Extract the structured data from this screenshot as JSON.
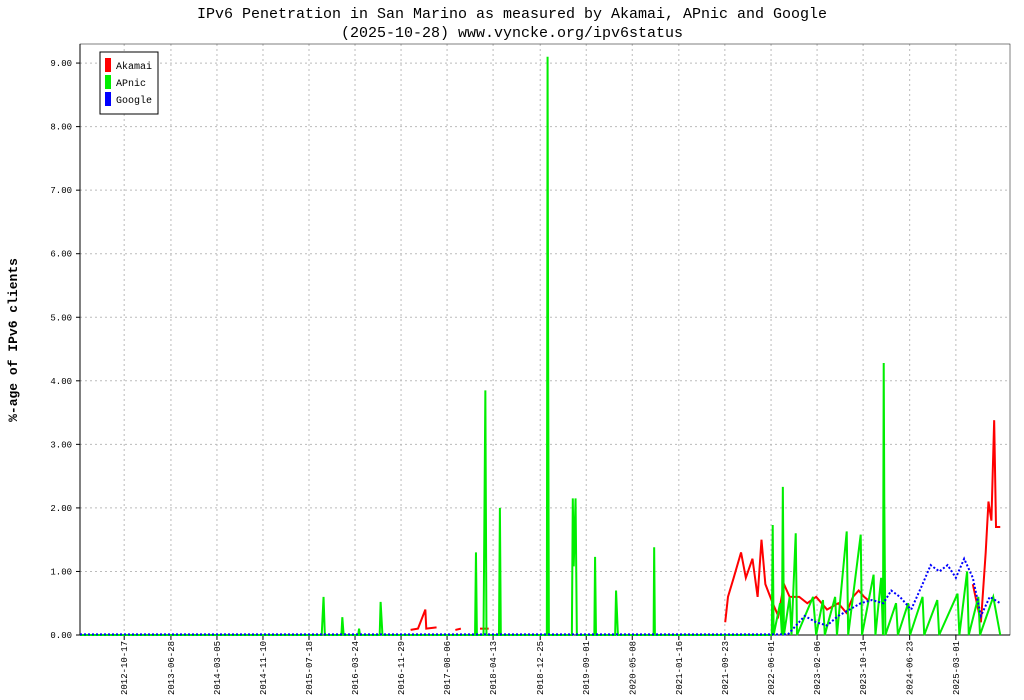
{
  "chart_data": {
    "type": "line",
    "title": "IPv6 Penetration in San Marino as measured by Akamai, APnic and Google",
    "subtitle": "(2025-10-28) www.vyncke.org/ipv6status",
    "y_label": "%-age of IPv6 clients",
    "xlim": [
      "2012-02-20",
      "2025-12-20"
    ],
    "xticks": [
      "2012-10-17",
      "2013-06-28",
      "2014-03-05",
      "2014-11-10",
      "2015-07-18",
      "2016-03-24",
      "2016-11-29",
      "2017-08-06",
      "2018-04-13",
      "2018-12-25",
      "2019-09-01",
      "2020-05-08",
      "2021-01-16",
      "2021-09-23",
      "2022-06-01",
      "2023-02-06",
      "2023-10-14",
      "2024-06-23",
      "2025-03-01"
    ],
    "ylim": [
      0,
      9.3
    ],
    "yticks": [
      {
        "value": 0,
        "label": "0.00"
      },
      {
        "value": 1,
        "label": "1.00"
      },
      {
        "value": 2,
        "label": "2.00"
      },
      {
        "value": 3,
        "label": "3.00"
      },
      {
        "value": 4,
        "label": "4.00"
      },
      {
        "value": 5,
        "label": "5.00"
      },
      {
        "value": 6,
        "label": "6.00"
      },
      {
        "value": 7,
        "label": "7.00"
      },
      {
        "value": 8,
        "label": "8.00"
      },
      {
        "value": 9,
        "label": "9.00"
      }
    ],
    "grid": true,
    "legend": "upper left",
    "series": [
      {
        "name": "Akamai",
        "color": "#ff0000",
        "dashed": false,
        "x": [
          "2017-01-20",
          "2017-03-01",
          "2017-04-10",
          "2017-04-15",
          "2017-06-10",
          "2017-07-01",
          "2017-09-20",
          "2017-10-20",
          "2017-12-01",
          "2018-02-01",
          "2018-03-20",
          "2018-06-01",
          "2021-09-25",
          "2021-10-10",
          "2021-11-10",
          "2021-12-20",
          "2022-01-15",
          "2022-02-20",
          "2022-03-20",
          "2022-04-10",
          "2022-05-01",
          "2022-06-10",
          "2022-07-10",
          "2022-08-10",
          "2022-09-10",
          "2022-11-01",
          "2022-12-15",
          "2023-02-01",
          "2023-04-01",
          "2023-06-01",
          "2023-07-15",
          "2023-08-20",
          "2023-09-20",
          "2023-10-20",
          "2023-11-10",
          "2024-01-01",
          "2025-06-01",
          "2025-07-15",
          "2025-08-10",
          "2025-08-25",
          "2025-09-10",
          "2025-09-25",
          "2025-10-05",
          "2025-10-28"
        ],
        "values": [
          0.08,
          0.1,
          0.4,
          0.1,
          0.12,
          null,
          0.08,
          0.1,
          null,
          0.1,
          0.1,
          null,
          0.2,
          0.6,
          0.9,
          1.3,
          0.9,
          1.2,
          0.6,
          1.5,
          0.8,
          0.5,
          0.3,
          0.8,
          0.6,
          0.6,
          0.5,
          0.6,
          0.4,
          0.5,
          0.35,
          0.6,
          0.7,
          0.6,
          0.55,
          null,
          0.8,
          0.2,
          1.3,
          2.1,
          1.8,
          3.38,
          1.7,
          1.7
        ]
      },
      {
        "name": "APnic",
        "color": "#00ee00",
        "dashed": false,
        "x": [
          "2012-02-20",
          "2015-09-25",
          "2015-10-05",
          "2015-10-12",
          "2016-01-10",
          "2016-01-15",
          "2016-01-22",
          "2016-04-10",
          "2016-04-15",
          "2016-04-20",
          "2016-08-05",
          "2016-08-10",
          "2016-08-20",
          "2018-01-05",
          "2018-01-10",
          "2018-01-15",
          "2018-02-20",
          "2018-02-25",
          "2018-03-02",
          "2018-03-08",
          "2018-05-15",
          "2018-05-20",
          "2018-05-25",
          "2019-01-30",
          "2019-02-03",
          "2019-02-06",
          "2019-02-10",
          "2019-06-15",
          "2019-06-20",
          "2019-06-25",
          "2019-07-05",
          "2019-07-12",
          "2019-10-15",
          "2019-10-19",
          "2019-10-24",
          "2020-02-05",
          "2020-02-10",
          "2020-02-15",
          "2020-02-20",
          "2020-09-01",
          "2020-09-04",
          "2020-09-08",
          "2022-06-05",
          "2022-06-10",
          "2022-06-15",
          "2022-07-20",
          "2022-07-30",
          "2022-08-04",
          "2022-08-10",
          "2022-09-10",
          "2022-09-20",
          "2022-10-13",
          "2022-10-20",
          "2023-01-15",
          "2023-02-01",
          "2023-03-10",
          "2023-03-20",
          "2023-05-15",
          "2023-05-25",
          "2023-07-17",
          "2023-07-25",
          "2023-10-01",
          "2023-10-08",
          "2023-12-10",
          "2023-12-20",
          "2024-01-20",
          "2024-01-30",
          "2024-02-03",
          "2024-02-06",
          "2024-02-12",
          "2024-04-10",
          "2024-04-20",
          "2024-06-15",
          "2024-06-25",
          "2024-09-01",
          "2024-09-10",
          "2024-11-20",
          "2024-11-30",
          "2025-03-10",
          "2025-03-20",
          "2025-05-01",
          "2025-05-10",
          "2025-07-01",
          "2025-07-10",
          "2025-09-20",
          "2025-10-28"
        ],
        "values": [
          0,
          0,
          0.6,
          0,
          0,
          0.28,
          0,
          0,
          0.1,
          0,
          0,
          0.52,
          0,
          0,
          1.3,
          0,
          0,
          1.92,
          3.85,
          0,
          0,
          2.0,
          0,
          0,
          9.1,
          4.55,
          0,
          0,
          2.15,
          1.08,
          2.15,
          0,
          0,
          1.23,
          0,
          0,
          0.7,
          0.35,
          0,
          0,
          1.38,
          0,
          0,
          1.73,
          0,
          0.5,
          0,
          2.33,
          0,
          0.6,
          0,
          1.6,
          0,
          0.6,
          0,
          0.55,
          0,
          0.6,
          0,
          1.63,
          0,
          1.58,
          0,
          0.95,
          0,
          0.9,
          0,
          4.28,
          2.15,
          0,
          0.5,
          0,
          0.5,
          0,
          0.6,
          0,
          0.55,
          0,
          0.65,
          0,
          1.0,
          0,
          0.6,
          0,
          0.6,
          0
        ]
      },
      {
        "name": "Google",
        "color": "#0000ff",
        "dashed": true,
        "x": [
          "2012-02-20",
          "2022-09-01",
          "2022-12-01",
          "2023-02-01",
          "2023-04-01",
          "2023-06-01",
          "2023-08-01",
          "2023-10-01",
          "2023-12-01",
          "2024-02-01",
          "2024-03-15",
          "2024-05-01",
          "2024-07-01",
          "2024-09-01",
          "2024-10-15",
          "2024-12-01",
          "2025-01-15",
          "2025-03-01",
          "2025-04-15",
          "2025-06-01",
          "2025-07-15",
          "2025-09-01",
          "2025-10-28"
        ],
        "values": [
          0.01,
          0.01,
          0.3,
          0.2,
          0.15,
          0.3,
          0.4,
          0.5,
          0.55,
          0.5,
          0.7,
          0.6,
          0.4,
          0.8,
          1.1,
          1.0,
          1.1,
          0.9,
          1.2,
          0.9,
          0.3,
          0.6,
          0.5
        ]
      }
    ]
  }
}
